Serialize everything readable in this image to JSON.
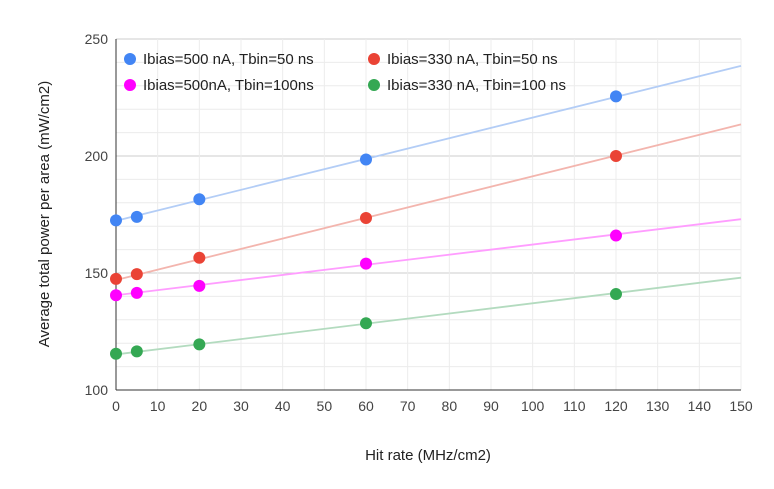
{
  "chart_data": {
    "type": "scatter",
    "title": "",
    "xlabel": "Hit rate (MHz/cm2)",
    "ylabel": "Average total power per area (mW/cm2)",
    "xlim": [
      0,
      150
    ],
    "ylim": [
      100,
      250
    ],
    "xticks": [
      0,
      10,
      20,
      30,
      40,
      50,
      60,
      70,
      80,
      90,
      100,
      110,
      120,
      130,
      140,
      150
    ],
    "yticks": [
      100,
      150,
      200,
      250
    ],
    "grid": true,
    "legend_position": "top",
    "trendlines": true,
    "series": [
      {
        "name": "Ibias=500 nA, Tbin=50 ns",
        "color": "#4285f4",
        "trend_color": "#b3cdf6",
        "x": [
          0,
          5,
          20,
          60,
          120
        ],
        "y": [
          172.5,
          174,
          181.5,
          198.5,
          225.5
        ],
        "trend": [
          172.3,
          238.5
        ]
      },
      {
        "name": "Ibias=330 nA, Tbin=50 ns",
        "color": "#ea4335",
        "trend_color": "#f3b5ae",
        "x": [
          0,
          5,
          20,
          60,
          120
        ],
        "y": [
          147.5,
          149.5,
          156.5,
          173.5,
          200
        ],
        "trend": [
          147,
          213.5
        ]
      },
      {
        "name": "Ibias=500nA, Tbin=100ns",
        "color": "#ff00ff",
        "trend_color": "#ff9dff",
        "x": [
          0,
          5,
          20,
          60,
          120
        ],
        "y": [
          140.5,
          141.5,
          144.5,
          154,
          166
        ],
        "trend": [
          140.5,
          173
        ]
      },
      {
        "name": "Ibias=330 nA, Tbin=100 ns",
        "color": "#34a853",
        "trend_color": "#b3dbbf",
        "x": [
          0,
          5,
          20,
          60,
          120
        ],
        "y": [
          115.5,
          116.5,
          119.5,
          128.5,
          141
        ],
        "trend": [
          115.2,
          148
        ]
      }
    ]
  }
}
